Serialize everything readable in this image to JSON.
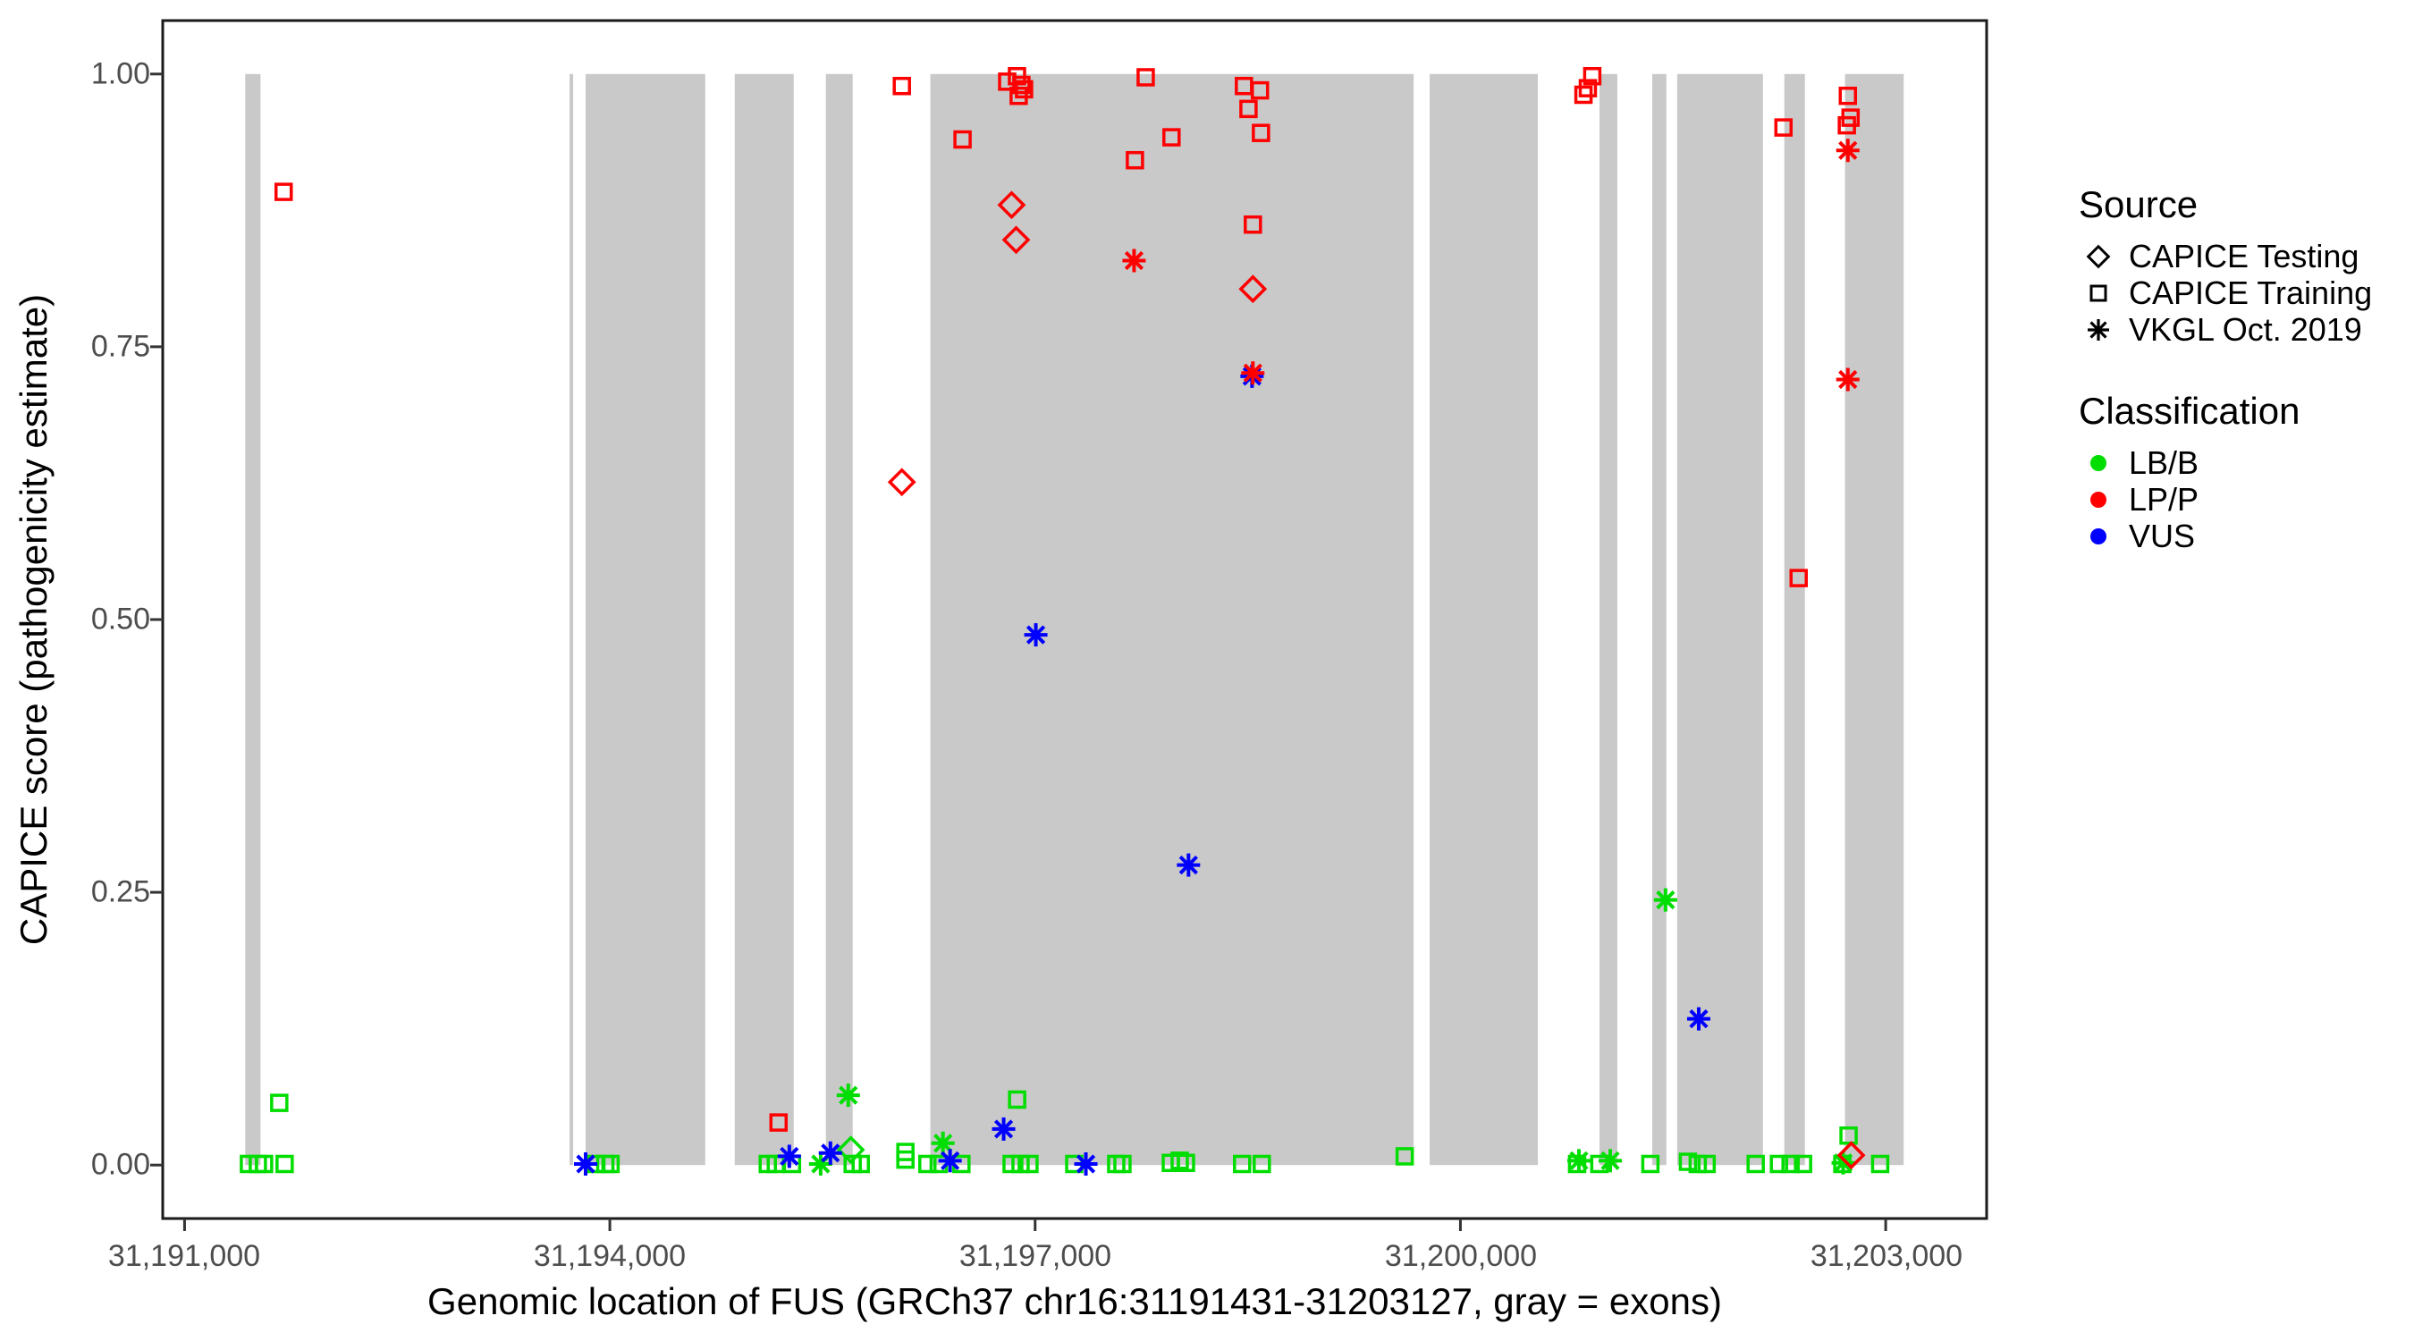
{
  "chart_data": {
    "type": "scatter",
    "xlabel": "Genomic location of FUS (GRCh37 chr16:31191431-31203127, gray = exons)",
    "ylabel": "CAPICE score (pathogenicity estimate)",
    "x_domain": [
      31190846,
      31203712
    ],
    "y_domain": [
      -0.049,
      1.049
    ],
    "grid": "off",
    "exon_color": "#c9c9c9",
    "x_ticks": [
      {
        "value": 31191000,
        "label": "31,191,000"
      },
      {
        "value": 31194000,
        "label": "31,194,000"
      },
      {
        "value": 31197000,
        "label": "31,197,000"
      },
      {
        "value": 31200000,
        "label": "31,200,000"
      },
      {
        "value": 31203000,
        "label": "31,203,000"
      }
    ],
    "y_ticks": [
      {
        "value": 1.0,
        "label": "1.00"
      },
      {
        "value": 0.75,
        "label": "0.75"
      },
      {
        "value": 0.5,
        "label": "0.50"
      },
      {
        "value": 0.25,
        "label": "0.25"
      },
      {
        "value": 0.0,
        "label": "0.00"
      }
    ],
    "exons": [
      [
        31191428,
        31191536
      ],
      [
        31193716,
        31193741
      ],
      [
        31193829,
        31194673
      ],
      [
        31194881,
        31195297
      ],
      [
        31195524,
        31195713
      ],
      [
        31196261,
        31199670
      ],
      [
        31199783,
        31200546
      ],
      [
        31200981,
        31201107
      ],
      [
        31201353,
        31201453
      ],
      [
        31201529,
        31202134
      ],
      [
        31202285,
        31202430
      ],
      [
        31202713,
        31203127
      ]
    ],
    "legend": {
      "source": {
        "title": "Source",
        "items": [
          {
            "label": "CAPICE Testing",
            "shape": "diamond"
          },
          {
            "label": "CAPICE Training",
            "shape": "square"
          },
          {
            "label": "VKGL Oct. 2019",
            "shape": "asterisk"
          }
        ]
      },
      "classification": {
        "title": "Classification",
        "items": [
          {
            "label": "LB/B",
            "color": "#00dd00"
          },
          {
            "label": "LP/P",
            "color": "#ff0000"
          },
          {
            "label": "VUS",
            "color": "#0000ff"
          }
        ]
      }
    },
    "class_colors": {
      "LB/B": "#00dd00",
      "LP/P": "#ff0000",
      "VUS": "#0000ff"
    },
    "source_shapes": {
      "CAPICE Testing": "diamond",
      "CAPICE Training": "square",
      "VKGL Oct. 2019": "asterisk"
    },
    "points": [
      {
        "pos": 31191454,
        "score": 0.001,
        "source": "CAPICE Training",
        "class": "LB/B"
      },
      {
        "pos": 31191517,
        "score": 0.001,
        "source": "CAPICE Training",
        "class": "LB/B"
      },
      {
        "pos": 31191561,
        "score": 0.001,
        "source": "CAPICE Training",
        "class": "LB/B"
      },
      {
        "pos": 31191668,
        "score": 0.057,
        "source": "CAPICE Training",
        "class": "LB/B"
      },
      {
        "pos": 31191706,
        "score": 0.001,
        "source": "CAPICE Training",
        "class": "LB/B"
      },
      {
        "pos": 31193905,
        "score": 0.001,
        "source": "CAPICE Training",
        "class": "LB/B"
      },
      {
        "pos": 31193968,
        "score": 0.001,
        "source": "CAPICE Training",
        "class": "LB/B"
      },
      {
        "pos": 31194005,
        "score": 0.001,
        "source": "CAPICE Training",
        "class": "LB/B"
      },
      {
        "pos": 31195114,
        "score": 0.001,
        "source": "CAPICE Training",
        "class": "LB/B"
      },
      {
        "pos": 31195171,
        "score": 0.001,
        "source": "CAPICE Training",
        "class": "LB/B"
      },
      {
        "pos": 31195285,
        "score": 0.001,
        "source": "CAPICE Training",
        "class": "LB/B"
      },
      {
        "pos": 31195487,
        "score": 0.001,
        "source": "VKGL Oct. 2019",
        "class": "LB/B"
      },
      {
        "pos": 31195682,
        "score": 0.064,
        "source": "VKGL Oct. 2019",
        "class": "LB/B"
      },
      {
        "pos": 31195700,
        "score": 0.014,
        "source": "CAPICE Testing",
        "class": "LB/B"
      },
      {
        "pos": 31195713,
        "score": 0.001,
        "source": "CAPICE Training",
        "class": "LB/B"
      },
      {
        "pos": 31195770,
        "score": 0.001,
        "source": "CAPICE Training",
        "class": "LB/B"
      },
      {
        "pos": 31196085,
        "score": 0.012,
        "source": "CAPICE Training",
        "class": "LB/B"
      },
      {
        "pos": 31196085,
        "score": 0.005,
        "source": "CAPICE Training",
        "class": "LB/B"
      },
      {
        "pos": 31196240,
        "score": 0.001,
        "source": "CAPICE Training",
        "class": "LB/B"
      },
      {
        "pos": 31196320,
        "score": 0.001,
        "source": "CAPICE Training",
        "class": "LB/B"
      },
      {
        "pos": 31196350,
        "score": 0.02,
        "source": "VKGL Oct. 2019",
        "class": "LB/B"
      },
      {
        "pos": 31196480,
        "score": 0.001,
        "source": "CAPICE Training",
        "class": "LB/B"
      },
      {
        "pos": 31196834,
        "score": 0.001,
        "source": "CAPICE Training",
        "class": "LB/B"
      },
      {
        "pos": 31196873,
        "score": 0.06,
        "source": "CAPICE Training",
        "class": "LB/B"
      },
      {
        "pos": 31196897,
        "score": 0.001,
        "source": "CAPICE Training",
        "class": "LB/B"
      },
      {
        "pos": 31196960,
        "score": 0.001,
        "source": "CAPICE Training",
        "class": "LB/B"
      },
      {
        "pos": 31197276,
        "score": 0.001,
        "source": "CAPICE Training",
        "class": "LB/B"
      },
      {
        "pos": 31197572,
        "score": 0.001,
        "source": "CAPICE Training",
        "class": "LB/B"
      },
      {
        "pos": 31197616,
        "score": 0.001,
        "source": "CAPICE Training",
        "class": "LB/B"
      },
      {
        "pos": 31197957,
        "score": 0.002,
        "source": "CAPICE Training",
        "class": "LB/B"
      },
      {
        "pos": 31198020,
        "score": 0.004,
        "source": "CAPICE Training",
        "class": "LB/B"
      },
      {
        "pos": 31198064,
        "score": 0.002,
        "source": "CAPICE Training",
        "class": "LB/B"
      },
      {
        "pos": 31198460,
        "score": 0.001,
        "source": "CAPICE Training",
        "class": "LB/B"
      },
      {
        "pos": 31198599,
        "score": 0.001,
        "source": "CAPICE Training",
        "class": "LB/B"
      },
      {
        "pos": 31199607,
        "score": 0.008,
        "source": "CAPICE Training",
        "class": "LB/B"
      },
      {
        "pos": 31200823,
        "score": 0.001,
        "source": "CAPICE Training",
        "class": "LB/B"
      },
      {
        "pos": 31200836,
        "score": 0.004,
        "source": "VKGL Oct. 2019",
        "class": "LB/B"
      },
      {
        "pos": 31200980,
        "score": 0.001,
        "source": "CAPICE Training",
        "class": "LB/B"
      },
      {
        "pos": 31201057,
        "score": 0.004,
        "source": "VKGL Oct. 2019",
        "class": "LB/B"
      },
      {
        "pos": 31201340,
        "score": 0.001,
        "source": "CAPICE Training",
        "class": "LB/B"
      },
      {
        "pos": 31201447,
        "score": 0.243,
        "source": "VKGL Oct. 2019",
        "class": "LB/B"
      },
      {
        "pos": 31201605,
        "score": 0.003,
        "source": "CAPICE Training",
        "class": "LB/B"
      },
      {
        "pos": 31201674,
        "score": 0.001,
        "source": "CAPICE Training",
        "class": "LB/B"
      },
      {
        "pos": 31201737,
        "score": 0.001,
        "source": "CAPICE Training",
        "class": "LB/B"
      },
      {
        "pos": 31202083,
        "score": 0.001,
        "source": "CAPICE Training",
        "class": "LB/B"
      },
      {
        "pos": 31202247,
        "score": 0.001,
        "source": "CAPICE Training",
        "class": "LB/B"
      },
      {
        "pos": 31202329,
        "score": 0.001,
        "source": "CAPICE Training",
        "class": "LB/B"
      },
      {
        "pos": 31202417,
        "score": 0.001,
        "source": "CAPICE Training",
        "class": "LB/B"
      },
      {
        "pos": 31202694,
        "score": 0.001,
        "source": "CAPICE Training",
        "class": "LB/B"
      },
      {
        "pos": 31202700,
        "score": 0.002,
        "source": "VKGL Oct. 2019",
        "class": "LB/B"
      },
      {
        "pos": 31202738,
        "score": 0.027,
        "source": "CAPICE Training",
        "class": "LB/B"
      },
      {
        "pos": 31202961,
        "score": 0.001,
        "source": "CAPICE Training",
        "class": "LB/B"
      },
      {
        "pos": 31193829,
        "score": 0.001,
        "source": "VKGL Oct. 2019",
        "class": "VUS"
      },
      {
        "pos": 31195266,
        "score": 0.008,
        "source": "VKGL Oct. 2019",
        "class": "VUS"
      },
      {
        "pos": 31195556,
        "score": 0.011,
        "source": "VKGL Oct. 2019",
        "class": "VUS"
      },
      {
        "pos": 31196400,
        "score": 0.004,
        "source": "VKGL Oct. 2019",
        "class": "VUS"
      },
      {
        "pos": 31196778,
        "score": 0.033,
        "source": "VKGL Oct. 2019",
        "class": "VUS"
      },
      {
        "pos": 31197005,
        "score": 0.486,
        "source": "VKGL Oct. 2019",
        "class": "VUS"
      },
      {
        "pos": 31197358,
        "score": 0.001,
        "source": "VKGL Oct. 2019",
        "class": "VUS"
      },
      {
        "pos": 31198082,
        "score": 0.275,
        "source": "VKGL Oct. 2019",
        "class": "VUS"
      },
      {
        "pos": 31198530,
        "score": 0.723,
        "source": "VKGL Oct. 2019",
        "class": "VUS"
      },
      {
        "pos": 31201681,
        "score": 0.134,
        "source": "VKGL Oct. 2019",
        "class": "VUS"
      },
      {
        "pos": 31191699,
        "score": 0.892,
        "source": "CAPICE Training",
        "class": "LP/P"
      },
      {
        "pos": 31195190,
        "score": 0.039,
        "source": "CAPICE Training",
        "class": "LP/P"
      },
      {
        "pos": 31196060,
        "score": 0.989,
        "source": "CAPICE Training",
        "class": "LP/P"
      },
      {
        "pos": 31196060,
        "score": 0.626,
        "source": "CAPICE Testing",
        "class": "LP/P"
      },
      {
        "pos": 31196488,
        "score": 0.94,
        "source": "CAPICE Training",
        "class": "LP/P"
      },
      {
        "pos": 31196803,
        "score": 0.993,
        "source": "CAPICE Training",
        "class": "LP/P"
      },
      {
        "pos": 31196872,
        "score": 0.998,
        "source": "CAPICE Training",
        "class": "LP/P"
      },
      {
        "pos": 31196884,
        "score": 0.98,
        "source": "CAPICE Training",
        "class": "LP/P"
      },
      {
        "pos": 31196903,
        "score": 0.99,
        "source": "CAPICE Training",
        "class": "LP/P"
      },
      {
        "pos": 31196922,
        "score": 0.986,
        "source": "CAPICE Training",
        "class": "LP/P"
      },
      {
        "pos": 31196834,
        "score": 0.88,
        "source": "CAPICE Testing",
        "class": "LP/P"
      },
      {
        "pos": 31196866,
        "score": 0.848,
        "source": "CAPICE Testing",
        "class": "LP/P"
      },
      {
        "pos": 31197698,
        "score": 0.829,
        "source": "VKGL Oct. 2019",
        "class": "LP/P"
      },
      {
        "pos": 31197704,
        "score": 0.921,
        "source": "CAPICE Training",
        "class": "LP/P"
      },
      {
        "pos": 31197780,
        "score": 0.997,
        "source": "CAPICE Training",
        "class": "LP/P"
      },
      {
        "pos": 31197962,
        "score": 0.942,
        "source": "CAPICE Training",
        "class": "LP/P"
      },
      {
        "pos": 31198473,
        "score": 0.989,
        "source": "CAPICE Training",
        "class": "LP/P"
      },
      {
        "pos": 31198505,
        "score": 0.968,
        "source": "CAPICE Training",
        "class": "LP/P"
      },
      {
        "pos": 31198586,
        "score": 0.985,
        "source": "CAPICE Training",
        "class": "LP/P"
      },
      {
        "pos": 31198593,
        "score": 0.946,
        "source": "CAPICE Training",
        "class": "LP/P"
      },
      {
        "pos": 31198536,
        "score": 0.862,
        "source": "CAPICE Training",
        "class": "LP/P"
      },
      {
        "pos": 31198536,
        "score": 0.803,
        "source": "CAPICE Testing",
        "class": "LP/P"
      },
      {
        "pos": 31198536,
        "score": 0.726,
        "source": "VKGL Oct. 2019",
        "class": "LP/P"
      },
      {
        "pos": 31200868,
        "score": 0.981,
        "source": "CAPICE Training",
        "class": "LP/P"
      },
      {
        "pos": 31200899,
        "score": 0.987,
        "source": "CAPICE Training",
        "class": "LP/P"
      },
      {
        "pos": 31200930,
        "score": 0.998,
        "source": "CAPICE Training",
        "class": "LP/P"
      },
      {
        "pos": 31202279,
        "score": 0.951,
        "source": "CAPICE Training",
        "class": "LP/P"
      },
      {
        "pos": 31202386,
        "score": 0.538,
        "source": "CAPICE Training",
        "class": "LP/P"
      },
      {
        "pos": 31202726,
        "score": 0.953,
        "source": "CAPICE Training",
        "class": "LP/P"
      },
      {
        "pos": 31202733,
        "score": 0.98,
        "source": "CAPICE Training",
        "class": "LP/P"
      },
      {
        "pos": 31202752,
        "score": 0.96,
        "source": "CAPICE Training",
        "class": "LP/P"
      },
      {
        "pos": 31202733,
        "score": 0.93,
        "source": "VKGL Oct. 2019",
        "class": "LP/P"
      },
      {
        "pos": 31202733,
        "score": 0.72,
        "source": "VKGL Oct. 2019",
        "class": "LP/P"
      },
      {
        "pos": 31202757,
        "score": 0.009,
        "source": "CAPICE Testing",
        "class": "LP/P"
      }
    ]
  }
}
